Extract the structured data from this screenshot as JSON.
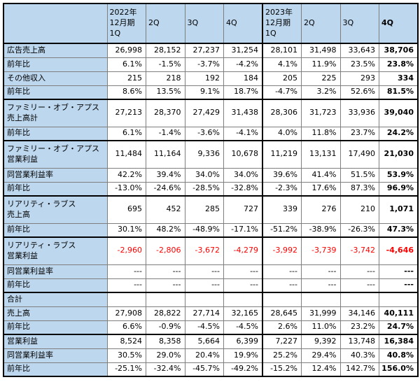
{
  "colors": {
    "header_bg": "#bdd7ee",
    "cell_bg": "#ffffff",
    "grid": "#7f7f7f",
    "section_border": "#000000",
    "negative": "#ff0000",
    "text": "#000000"
  },
  "chart_data": {
    "type": "table",
    "title": "",
    "layout": {
      "grid": true,
      "label_column_highlighted": true,
      "bold_last_column": true,
      "thick_divider_between_fiscal_years": true
    },
    "header": {
      "corner": "",
      "columns": [
        "2022年\n12月期\n1Q",
        "2Q",
        "3Q",
        "4Q",
        "2023年\n12月期\n1Q",
        "2Q",
        "3Q",
        "4Q"
      ]
    },
    "rows": [
      {
        "label": "広告売上高",
        "section_start": false,
        "negative_red": false,
        "values": [
          "26,998",
          "28,152",
          "27,237",
          "31,254",
          "28,101",
          "31,498",
          "33,643",
          "38,706"
        ]
      },
      {
        "label": "前年比",
        "section_start": false,
        "negative_red": false,
        "values": [
          "6.1%",
          "-1.5%",
          "-3.7%",
          "-4.2%",
          "4.1%",
          "11.9%",
          "23.5%",
          "23.8%"
        ]
      },
      {
        "label": "その他収入",
        "section_start": false,
        "negative_red": false,
        "values": [
          "215",
          "218",
          "192",
          "184",
          "205",
          "225",
          "293",
          "334"
        ]
      },
      {
        "label": "前年比",
        "section_start": false,
        "negative_red": false,
        "values": [
          "8.6%",
          "13.5%",
          "9.1%",
          "18.7%",
          "-4.7%",
          "3.2%",
          "52.6%",
          "81.5%"
        ]
      },
      {
        "label": "ファミリー・オブ・アプス\n売上高計",
        "section_start": true,
        "negative_red": false,
        "values": [
          "27,213",
          "28,370",
          "27,429",
          "31,438",
          "28,306",
          "31,723",
          "33,936",
          "39,040"
        ]
      },
      {
        "label": "前年比",
        "section_start": false,
        "negative_red": false,
        "values": [
          "6.1%",
          "-1.4%",
          "-3.6%",
          "-4.1%",
          "4.0%",
          "11.8%",
          "23.7%",
          "24.2%"
        ]
      },
      {
        "label": "ファミリー・オブ・アプス\n営業利益",
        "section_start": true,
        "negative_red": false,
        "values": [
          "11,484",
          "11,164",
          "9,336",
          "10,678",
          "11,219",
          "13,131",
          "17,490",
          "21,030"
        ]
      },
      {
        "label": "同営業利益率",
        "section_start": false,
        "negative_red": false,
        "values": [
          "42.2%",
          "39.4%",
          "34.0%",
          "34.0%",
          "39.6%",
          "41.4%",
          "51.5%",
          "53.9%"
        ]
      },
      {
        "label": "前年比",
        "section_start": false,
        "negative_red": false,
        "values": [
          "-13.0%",
          "-24.6%",
          "-28.5%",
          "-32.8%",
          "-2.3%",
          "17.6%",
          "87.3%",
          "96.9%"
        ]
      },
      {
        "label": "リアリティ・ラブス\n売上高",
        "section_start": true,
        "negative_red": false,
        "values": [
          "695",
          "452",
          "285",
          "727",
          "339",
          "276",
          "210",
          "1,071"
        ]
      },
      {
        "label": "前年比",
        "section_start": false,
        "negative_red": false,
        "values": [
          "30.1%",
          "48.2%",
          "-48.9%",
          "-17.1%",
          "-51.2%",
          "-38.9%",
          "-26.3%",
          "47.3%"
        ]
      },
      {
        "label": "リアリティ・ラブス\n営業利益",
        "section_start": true,
        "negative_red": true,
        "values": [
          "-2,960",
          "-2,806",
          "-3,672",
          "-4,279",
          "-3,992",
          "-3,739",
          "-3,742",
          "-4,646"
        ]
      },
      {
        "label": "同営業利益率",
        "section_start": false,
        "negative_red": false,
        "values": [
          "---",
          "---",
          "---",
          "---",
          "---",
          "---",
          "---",
          "---"
        ]
      },
      {
        "label": "前年比",
        "section_start": false,
        "negative_red": false,
        "values": [
          "---",
          "---",
          "---",
          "---",
          "---",
          "---",
          "---",
          "---"
        ]
      },
      {
        "label": "合計",
        "section_start": true,
        "negative_red": false,
        "values": [
          "",
          "",
          "",
          "",
          "",
          "",
          "",
          ""
        ]
      },
      {
        "label": "売上高",
        "section_start": false,
        "negative_red": false,
        "values": [
          "27,908",
          "28,822",
          "27,714",
          "32,165",
          "28,645",
          "31,999",
          "34,146",
          "40,111"
        ]
      },
      {
        "label": "前年比",
        "section_start": false,
        "negative_red": false,
        "values": [
          "6.6%",
          "-0.9%",
          "-4.5%",
          "-4.5%",
          "2.6%",
          "11.0%",
          "23.2%",
          "24.7%"
        ]
      },
      {
        "label": "営業利益",
        "section_start": true,
        "negative_red": false,
        "values": [
          "8,524",
          "8,358",
          "5,664",
          "6,399",
          "7,227",
          "9,392",
          "13,748",
          "16,384"
        ]
      },
      {
        "label": "同営業利益率",
        "section_start": false,
        "negative_red": false,
        "values": [
          "30.5%",
          "29.0%",
          "20.4%",
          "19.9%",
          "25.2%",
          "29.4%",
          "40.3%",
          "40.8%"
        ]
      },
      {
        "label": "前年比",
        "section_start": false,
        "negative_red": false,
        "values": [
          "-25.1%",
          "-32.4%",
          "-45.7%",
          "-49.2%",
          "-15.2%",
          "12.4%",
          "142.7%",
          "156.0%"
        ]
      }
    ]
  }
}
